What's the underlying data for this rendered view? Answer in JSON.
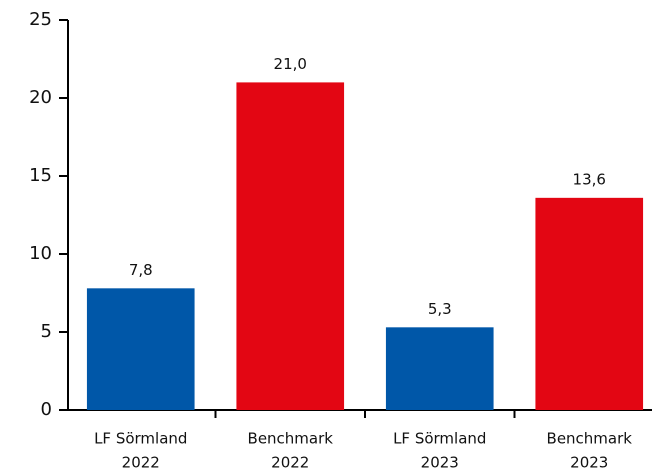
{
  "chart_data": {
    "type": "bar",
    "categories": [
      [
        "LF Sörmland",
        "2022"
      ],
      [
        "Benchmark",
        "2022"
      ],
      [
        "LF Sörmland",
        "2023"
      ],
      [
        "Benchmark",
        "2023"
      ]
    ],
    "values": [
      7.8,
      21.0,
      5.3,
      13.6
    ],
    "value_labels": [
      "7,8",
      "21,0",
      "5,3",
      "13,6"
    ],
    "colors": [
      "#0057a8",
      "#e30613",
      "#0057a8",
      "#e30613"
    ],
    "ylim": [
      0,
      25
    ],
    "yticks": [
      0,
      5,
      10,
      15,
      20,
      25
    ],
    "grid": false
  }
}
